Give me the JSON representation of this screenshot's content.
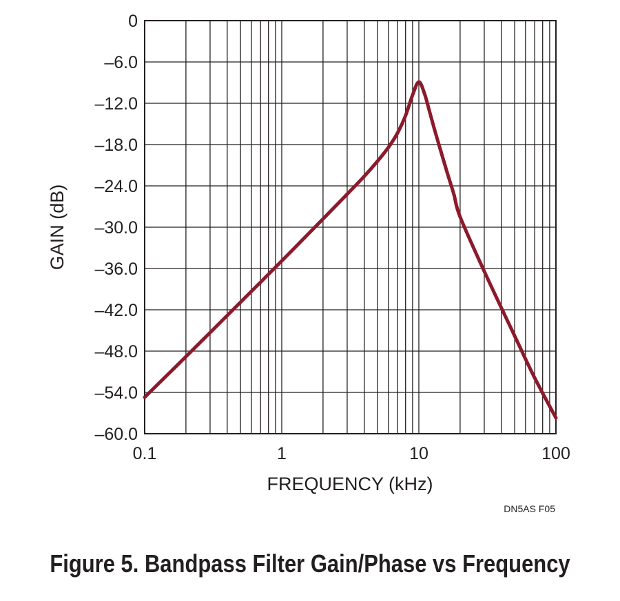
{
  "caption": "Figure 5. Bandpass Filter Gain/Phase vs Frequency",
  "figure_id": "DN5AS F05",
  "colors": {
    "curve": "#8b1a2b",
    "grid": "#231f20",
    "text": "#231f20"
  },
  "chart_data": {
    "type": "line",
    "title": "",
    "xlabel": "FREQUENCY (kHz)",
    "ylabel": "GAIN (dB)",
    "xscale": "log",
    "xlim": [
      0.1,
      100
    ],
    "ylim": [
      -60,
      0
    ],
    "grid": true,
    "x_tick_labels": [
      "0.1",
      "1",
      "10",
      "100"
    ],
    "y_tick_labels": [
      "0",
      "–6.0",
      "–12.0",
      "–18.0",
      "–24.0",
      "–30.0",
      "–36.0",
      "–42.0",
      "–48.0",
      "–54.0",
      "–60.0"
    ],
    "y_tick_values": [
      0,
      -6,
      -12,
      -18,
      -24,
      -30,
      -36,
      -42,
      -48,
      -54,
      -60
    ],
    "series": [
      {
        "x": [
          0.1,
          0.2,
          0.5,
          1,
          2,
          3,
          4,
          5,
          6,
          7,
          8,
          9,
          10,
          11,
          12,
          13,
          14,
          15,
          16,
          18,
          20,
          30,
          50,
          70,
          100
        ],
        "y": [
          -54.7,
          -48.8,
          -40.9,
          -34.9,
          -28.8,
          -25.2,
          -22.6,
          -20.4,
          -18.4,
          -16.3,
          -13.8,
          -10.8,
          -8.9,
          -10.6,
          -13.3,
          -15.8,
          -18.0,
          -20.0,
          -21.9,
          -25.2,
          -28.5,
          -36.4,
          -45.8,
          -51.9,
          -57.7
        ]
      }
    ]
  }
}
